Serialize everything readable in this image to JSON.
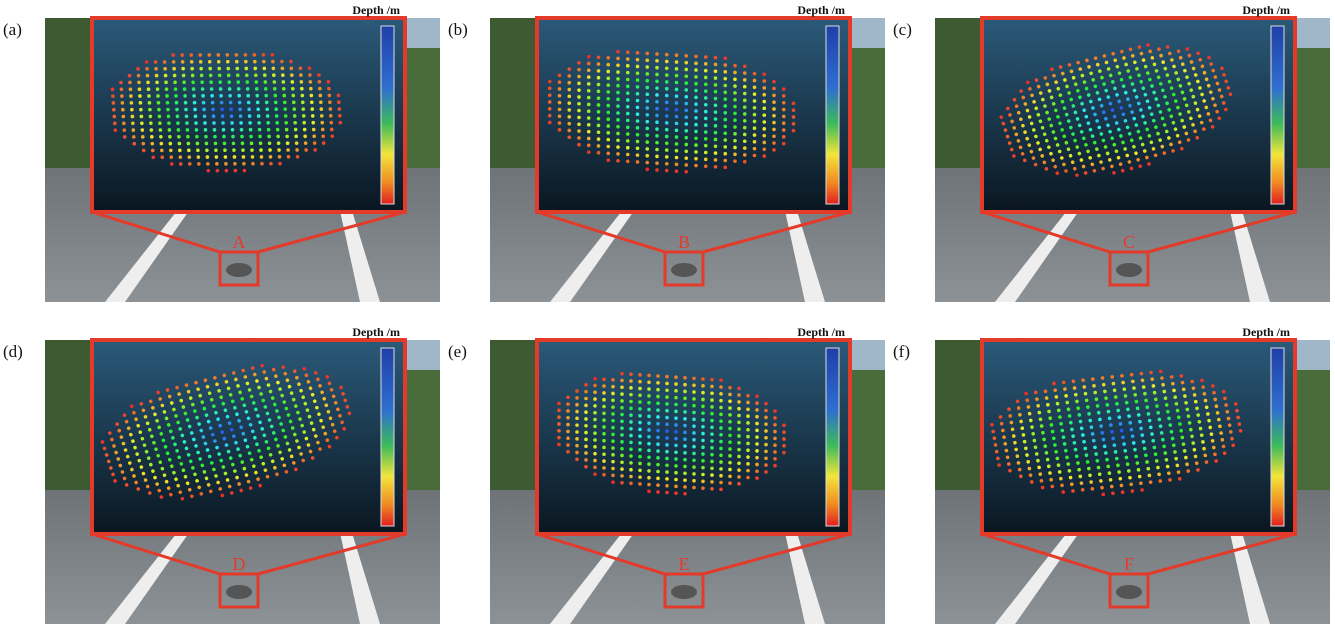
{
  "panels": [
    {
      "label": "(a)",
      "depth_label": "Depth /m",
      "marker": "A"
    },
    {
      "label": "(b)",
      "depth_label": "Depth /m",
      "marker": "B"
    },
    {
      "label": "(c)",
      "depth_label": "Depth /m",
      "marker": "C"
    },
    {
      "label": "(d)",
      "depth_label": "Depth /m",
      "marker": "D"
    },
    {
      "label": "(e)",
      "depth_label": "Depth /m",
      "marker": "E"
    },
    {
      "label": "(f)",
      "depth_label": "Depth /m",
      "marker": "F"
    }
  ]
}
